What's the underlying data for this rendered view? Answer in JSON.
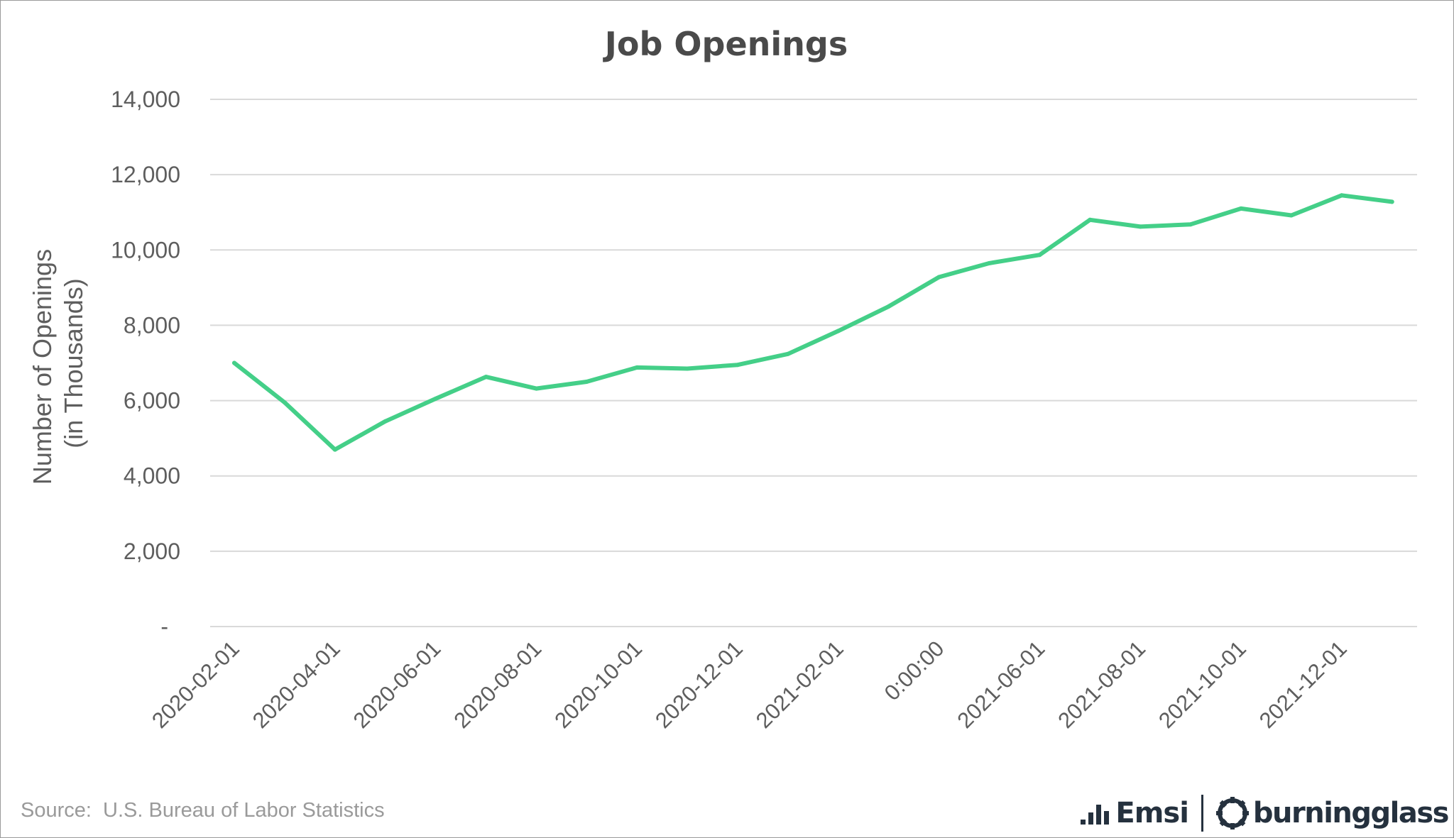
{
  "chart_data": {
    "type": "line",
    "title": "Job Openings",
    "ylabel": [
      "Number of Openings",
      "(in Thousands)"
    ],
    "xlabel": "",
    "ylim": [
      0,
      14000
    ],
    "yticks": [
      0,
      2000,
      4000,
      6000,
      8000,
      10000,
      12000,
      14000
    ],
    "ytick_labels": [
      "-",
      "2,000",
      "4,000",
      "6,000",
      "8,000",
      "10,000",
      "12,000",
      "14,000"
    ],
    "x_tick_labels": [
      "2020-02-01",
      "2020-04-01",
      "2020-06-01",
      "2020-08-01",
      "2020-10-01",
      "2020-12-01",
      "2021-02-01",
      "0:00:00",
      "2021-06-01",
      "2021-08-01",
      "2021-10-01",
      "2021-12-01"
    ],
    "x": [
      "2020-02-01",
      "2020-03-01",
      "2020-04-01",
      "2020-05-01",
      "2020-06-01",
      "2020-07-01",
      "2020-08-01",
      "2020-09-01",
      "2020-10-01",
      "2020-11-01",
      "2020-12-01",
      "2021-01-01",
      "2021-02-01",
      "2021-03-01",
      "2021-04-01",
      "2021-05-01",
      "2021-06-01",
      "2021-07-01",
      "2021-08-01",
      "2021-09-01",
      "2021-10-01",
      "2021-11-01",
      "2021-12-01",
      "2022-01-01"
    ],
    "series": [
      {
        "values": [
          7000,
          5950,
          4700,
          5450,
          6050,
          6630,
          6320,
          6500,
          6880,
          6850,
          6950,
          7240,
          7850,
          8500,
          9280,
          9650,
          9870,
          10800,
          10620,
          10680,
          11100,
          10920,
          11450,
          11280
        ],
        "color": "#44cf88"
      }
    ],
    "grid": true,
    "grid_color": "#d9d9d9",
    "legend": "none"
  },
  "footer": {
    "source": "Source:  U.S. Bureau of Labor Statistics",
    "logo_emsi": "Emsi",
    "logo_burningglass": "burningglass"
  },
  "colors": {
    "logo": "#25313e",
    "text": "#5e5e5e"
  }
}
